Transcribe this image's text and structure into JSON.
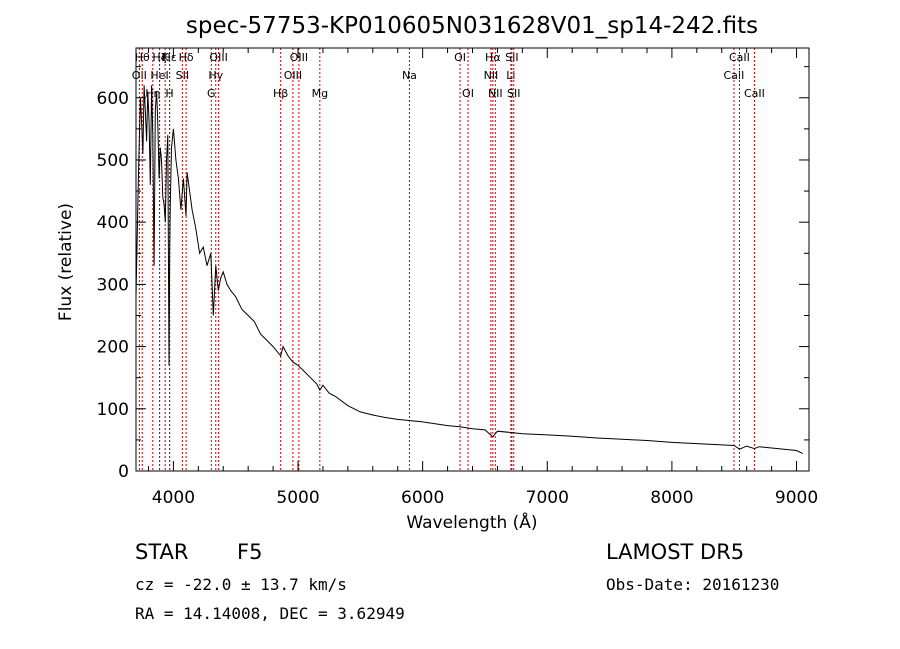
{
  "chart_data": {
    "type": "line",
    "title": "spec-57753-KP010605N031628V01_sp14-242.fits",
    "xlabel": "Wavelength (Å)",
    "ylabel": "Flux (relative)",
    "xlim": [
      3700,
      9100
    ],
    "ylim": [
      0,
      680
    ],
    "xticks": [
      4000,
      5000,
      6000,
      7000,
      8000,
      9000
    ],
    "yticks": [
      0,
      100,
      200,
      300,
      400,
      500,
      600
    ],
    "grid": false,
    "line_color": "#000000",
    "marker_color": "#cc0000",
    "series": [
      {
        "x": [
          3700,
          3720,
          3735,
          3745,
          3755,
          3765,
          3775,
          3785,
          3795,
          3805,
          3815,
          3825,
          3835,
          3845,
          3855,
          3865,
          3875,
          3885,
          3895,
          3905,
          3915,
          3925,
          3935,
          3945,
          3955,
          3965,
          3970,
          3975,
          3985,
          4000,
          4020,
          4040,
          4060,
          4080,
          4101,
          4110,
          4130,
          4150,
          4180,
          4210,
          4240,
          4270,
          4300,
          4320,
          4340,
          4360,
          4380,
          4400,
          4430,
          4460,
          4500,
          4550,
          4600,
          4650,
          4700,
          4750,
          4800,
          4861,
          4880,
          4920,
          4960,
          5000,
          5050,
          5100,
          5150,
          5175,
          5200,
          5250,
          5300,
          5400,
          5500,
          5600,
          5700,
          5800,
          5900,
          6000,
          6100,
          6200,
          6300,
          6400,
          6500,
          6563,
          6600,
          6700,
          6800,
          7000,
          7200,
          7400,
          7600,
          7800,
          8000,
          8200,
          8400,
          8500,
          8542,
          8600,
          8662,
          8700,
          8800,
          8900,
          9000,
          9050
        ],
        "y": [
          280,
          480,
          600,
          560,
          510,
          620,
          580,
          530,
          610,
          560,
          460,
          620,
          540,
          330,
          580,
          610,
          560,
          470,
          520,
          500,
          440,
          430,
          400,
          500,
          540,
          170,
          350,
          430,
          520,
          550,
          500,
          470,
          420,
          470,
          410,
          480,
          450,
          420,
          390,
          350,
          360,
          330,
          350,
          250,
          330,
          290,
          310,
          320,
          300,
          290,
          280,
          260,
          250,
          240,
          220,
          210,
          200,
          185,
          200,
          185,
          175,
          170,
          160,
          150,
          140,
          130,
          138,
          125,
          120,
          105,
          95,
          90,
          86,
          83,
          81,
          79,
          76,
          73,
          71,
          68,
          66,
          55,
          64,
          62,
          60,
          58,
          56,
          53,
          51,
          49,
          46,
          44,
          42,
          41,
          35,
          40,
          36,
          39,
          37,
          35,
          33,
          28
        ]
      }
    ],
    "line_markers": [
      {
        "label": "OII",
        "x": 3727,
        "row": 2
      },
      {
        "label": "Hθ",
        "x": 3750,
        "row": 1
      },
      {
        "label": "Hη",
        "x": 3835,
        "row": 3
      },
      {
        "label": "HeI",
        "x": 3889,
        "row": 2
      },
      {
        "label": "Hζ",
        "x": 3889,
        "row": 1
      },
      {
        "label": "K",
        "x": 3934,
        "row": 1
      },
      {
        "label": "H",
        "x": 3969,
        "row": 3
      },
      {
        "label": "Hε",
        "x": 3970,
        "row": 1
      },
      {
        "label": "SII",
        "x": 4072,
        "row": 2
      },
      {
        "label": "Hδ",
        "x": 4102,
        "row": 1
      },
      {
        "label": "G",
        "x": 4304,
        "row": 3
      },
      {
        "label": "Hγ",
        "x": 4340,
        "row": 2
      },
      {
        "label": "OIII",
        "x": 4363,
        "row": 1
      },
      {
        "label": "Hβ",
        "x": 4861,
        "row": 3
      },
      {
        "label": "OIII",
        "x": 4959,
        "row": 2
      },
      {
        "label": "OIII",
        "x": 5007,
        "row": 1
      },
      {
        "label": "Mg",
        "x": 5175,
        "row": 3
      },
      {
        "label": "Na",
        "x": 5894,
        "row": 2
      },
      {
        "label": "OI",
        "x": 6300,
        "row": 1
      },
      {
        "label": "OI",
        "x": 6364,
        "row": 3
      },
      {
        "label": "NII",
        "x": 6548,
        "row": 2
      },
      {
        "label": "Hα",
        "x": 6563,
        "row": 1
      },
      {
        "label": "NII",
        "x": 6583,
        "row": 3
      },
      {
        "label": "Li",
        "x": 6708,
        "row": 2
      },
      {
        "label": "SII",
        "x": 6716,
        "row": 1
      },
      {
        "label": "SII",
        "x": 6731,
        "row": 3
      },
      {
        "label": "CaII",
        "x": 8498,
        "row": 2
      },
      {
        "label": "CaII",
        "x": 8542,
        "row": 1
      },
      {
        "label": "CaII",
        "x": 8662,
        "row": 3
      }
    ]
  },
  "info": {
    "object_class": "STAR",
    "subclass": "F5",
    "survey": "LAMOST  DR5",
    "redshift": "cz = -22.0 ± 13.7 km/s",
    "obs_date": "Obs-Date: 20161230",
    "coords": "RA =  14.14008, DEC =   3.62949"
  }
}
